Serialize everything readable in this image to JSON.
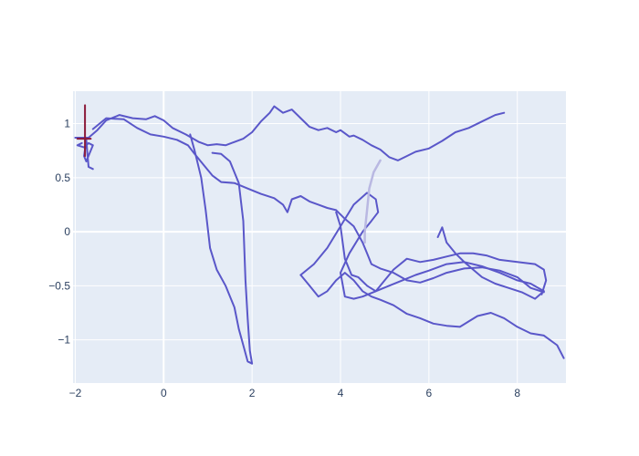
{
  "chart_data": {
    "type": "line",
    "title": "",
    "xlabel": "",
    "ylabel": "",
    "xlim": [
      -2.05,
      9.1
    ],
    "ylim": [
      -1.4,
      1.3
    ],
    "x_ticks": [
      {
        "value": -2,
        "label": "−2"
      },
      {
        "value": 0,
        "label": "0"
      },
      {
        "value": 2,
        "label": "2"
      },
      {
        "value": 4,
        "label": "4"
      },
      {
        "value": 6,
        "label": "6"
      },
      {
        "value": 8,
        "label": "8"
      }
    ],
    "y_ticks": [
      {
        "value": 1,
        "label": "1"
      },
      {
        "value": 0.5,
        "label": "0.5"
      },
      {
        "value": 0,
        "label": "0"
      },
      {
        "value": -0.5,
        "label": "−0.5"
      },
      {
        "value": -1,
        "label": "−1"
      }
    ],
    "grid": true,
    "legend": "none",
    "colors": {
      "plot_bg": "#e5ecf6",
      "grid": "#ffffff",
      "line": "#5a57c9",
      "line_light": "#b9b8e2",
      "accent_dark": "#8b1a3a"
    },
    "series": [
      {
        "color_key": "line",
        "points": [
          [
            -2.0,
            0.87
          ],
          [
            -1.7,
            0.87
          ],
          [
            -1.5,
            0.94
          ],
          [
            -1.3,
            1.03
          ],
          [
            -1.0,
            1.08
          ],
          [
            -0.7,
            1.05
          ],
          [
            -0.4,
            1.04
          ],
          [
            -0.2,
            1.07
          ],
          [
            0.0,
            1.03
          ],
          [
            0.2,
            0.96
          ],
          [
            0.5,
            0.9
          ],
          [
            0.8,
            0.83
          ],
          [
            1.0,
            0.8
          ],
          [
            1.2,
            0.81
          ],
          [
            1.4,
            0.8
          ],
          [
            1.6,
            0.83
          ],
          [
            1.8,
            0.86
          ],
          [
            2.0,
            0.92
          ],
          [
            2.2,
            1.02
          ],
          [
            2.4,
            1.1
          ],
          [
            2.5,
            1.16
          ],
          [
            2.7,
            1.1
          ],
          [
            2.9,
            1.13
          ],
          [
            3.1,
            1.05
          ],
          [
            3.3,
            0.97
          ],
          [
            3.5,
            0.94
          ],
          [
            3.7,
            0.96
          ],
          [
            3.9,
            0.92
          ],
          [
            4.0,
            0.94
          ],
          [
            4.2,
            0.88
          ],
          [
            4.3,
            0.89
          ],
          [
            4.5,
            0.85
          ],
          [
            4.7,
            0.8
          ],
          [
            4.9,
            0.76
          ],
          [
            5.1,
            0.69
          ],
          [
            5.3,
            0.66
          ],
          [
            5.5,
            0.7
          ],
          [
            5.7,
            0.74
          ],
          [
            6.0,
            0.77
          ],
          [
            6.3,
            0.84
          ],
          [
            6.6,
            0.92
          ],
          [
            6.9,
            0.96
          ],
          [
            7.2,
            1.02
          ],
          [
            7.5,
            1.08
          ],
          [
            7.7,
            1.1
          ]
        ]
      },
      {
        "color_key": "line",
        "points": [
          [
            -1.6,
            0.95
          ],
          [
            -1.3,
            1.05
          ],
          [
            -0.9,
            1.04
          ],
          [
            -0.6,
            0.96
          ],
          [
            -0.3,
            0.9
          ],
          [
            0.0,
            0.88
          ],
          [
            0.3,
            0.85
          ],
          [
            0.55,
            0.8
          ],
          [
            0.7,
            0.72
          ],
          [
            0.9,
            0.62
          ],
          [
            1.1,
            0.52
          ],
          [
            1.3,
            0.46
          ],
          [
            1.6,
            0.45
          ],
          [
            1.9,
            0.4
          ],
          [
            2.2,
            0.35
          ],
          [
            2.5,
            0.31
          ],
          [
            2.7,
            0.25
          ],
          [
            2.8,
            0.18
          ],
          [
            2.9,
            0.3
          ],
          [
            3.1,
            0.33
          ],
          [
            3.3,
            0.28
          ],
          [
            3.5,
            0.25
          ],
          [
            3.7,
            0.22
          ],
          [
            3.9,
            0.2
          ],
          [
            4.1,
            0.12
          ],
          [
            4.3,
            0.05
          ],
          [
            4.5,
            -0.1
          ],
          [
            4.6,
            -0.2
          ],
          [
            4.7,
            -0.3
          ],
          [
            4.9,
            -0.34
          ],
          [
            5.2,
            -0.38
          ],
          [
            5.5,
            -0.45
          ],
          [
            5.8,
            -0.47
          ],
          [
            6.1,
            -0.43
          ],
          [
            6.4,
            -0.38
          ],
          [
            6.8,
            -0.34
          ],
          [
            7.2,
            -0.33
          ],
          [
            7.6,
            -0.36
          ],
          [
            8.0,
            -0.42
          ],
          [
            8.3,
            -0.52
          ],
          [
            8.6,
            -0.56
          ]
        ]
      },
      {
        "color_key": "line",
        "points": [
          [
            0.6,
            0.9
          ],
          [
            0.7,
            0.75
          ],
          [
            0.85,
            0.5
          ],
          [
            0.95,
            0.2
          ],
          [
            1.05,
            -0.15
          ],
          [
            1.2,
            -0.35
          ],
          [
            1.4,
            -0.5
          ],
          [
            1.6,
            -0.7
          ],
          [
            1.7,
            -0.9
          ],
          [
            1.8,
            -1.05
          ],
          [
            1.9,
            -1.2
          ],
          [
            2.0,
            -1.22
          ],
          [
            1.95,
            -1.1
          ],
          [
            1.9,
            -0.8
          ],
          [
            1.85,
            -0.45
          ],
          [
            1.8,
            0.1
          ],
          [
            1.7,
            0.45
          ],
          [
            1.5,
            0.65
          ],
          [
            1.3,
            0.72
          ],
          [
            1.1,
            0.73
          ]
        ]
      },
      {
        "color_key": "line",
        "points": [
          [
            3.1,
            -0.4
          ],
          [
            3.3,
            -0.5
          ],
          [
            3.5,
            -0.6
          ],
          [
            3.7,
            -0.55
          ],
          [
            3.9,
            -0.45
          ],
          [
            4.1,
            -0.38
          ],
          [
            4.3,
            -0.45
          ],
          [
            4.5,
            -0.55
          ],
          [
            4.7,
            -0.6
          ],
          [
            4.9,
            -0.63
          ],
          [
            5.2,
            -0.68
          ],
          [
            5.5,
            -0.76
          ],
          [
            5.8,
            -0.8
          ],
          [
            6.1,
            -0.85
          ],
          [
            6.4,
            -0.87
          ],
          [
            6.7,
            -0.88
          ],
          [
            6.9,
            -0.83
          ],
          [
            7.1,
            -0.78
          ],
          [
            7.4,
            -0.75
          ],
          [
            7.7,
            -0.8
          ],
          [
            8.0,
            -0.88
          ],
          [
            8.3,
            -0.94
          ],
          [
            8.6,
            -0.96
          ],
          [
            8.9,
            -1.05
          ],
          [
            9.05,
            -1.17
          ]
        ]
      },
      {
        "color_key": "line",
        "points": [
          [
            3.1,
            -0.4
          ],
          [
            3.4,
            -0.3
          ],
          [
            3.7,
            -0.15
          ],
          [
            4.0,
            0.05
          ],
          [
            4.3,
            0.25
          ],
          [
            4.6,
            0.36
          ],
          [
            4.8,
            0.3
          ],
          [
            4.85,
            0.18
          ],
          [
            4.7,
            0.1
          ],
          [
            4.5,
            0.0
          ],
          [
            4.2,
            -0.2
          ],
          [
            4.0,
            -0.38
          ],
          [
            4.1,
            -0.6
          ],
          [
            4.3,
            -0.62
          ],
          [
            4.5,
            -0.6
          ],
          [
            4.8,
            -0.55
          ],
          [
            5.1,
            -0.5
          ],
          [
            5.4,
            -0.45
          ],
          [
            5.7,
            -0.4
          ],
          [
            6.0,
            -0.36
          ],
          [
            6.4,
            -0.3
          ],
          [
            6.8,
            -0.28
          ],
          [
            7.2,
            -0.32
          ],
          [
            7.6,
            -0.38
          ],
          [
            8.0,
            -0.45
          ],
          [
            8.3,
            -0.48
          ],
          [
            8.6,
            -0.55
          ]
        ]
      },
      {
        "color_key": "line",
        "points": [
          [
            3.9,
            0.18
          ],
          [
            4.0,
            0.05
          ],
          [
            4.1,
            -0.25
          ],
          [
            4.25,
            -0.4
          ],
          [
            4.4,
            -0.42
          ],
          [
            4.6,
            -0.5
          ],
          [
            4.8,
            -0.55
          ],
          [
            5.0,
            -0.45
          ],
          [
            5.2,
            -0.35
          ],
          [
            5.5,
            -0.25
          ],
          [
            5.8,
            -0.28
          ],
          [
            6.1,
            -0.26
          ],
          [
            6.4,
            -0.23
          ],
          [
            6.7,
            -0.2
          ],
          [
            7.0,
            -0.2
          ],
          [
            7.3,
            -0.22
          ],
          [
            7.6,
            -0.26
          ],
          [
            8.0,
            -0.28
          ],
          [
            8.4,
            -0.3
          ],
          [
            8.6,
            -0.35
          ],
          [
            8.65,
            -0.45
          ],
          [
            8.55,
            -0.58
          ]
        ]
      },
      {
        "color_key": "line",
        "points": [
          [
            6.2,
            -0.05
          ],
          [
            6.3,
            0.04
          ],
          [
            6.4,
            -0.1
          ],
          [
            6.6,
            -0.2
          ],
          [
            6.8,
            -0.28
          ],
          [
            7.0,
            -0.35
          ],
          [
            7.2,
            -0.42
          ],
          [
            7.5,
            -0.48
          ],
          [
            7.8,
            -0.52
          ],
          [
            8.1,
            -0.56
          ],
          [
            8.4,
            -0.62
          ],
          [
            8.6,
            -0.55
          ]
        ]
      },
      {
        "color_key": "line_light",
        "points": [
          [
            4.9,
            0.66
          ],
          [
            4.75,
            0.55
          ],
          [
            4.65,
            0.4
          ],
          [
            4.6,
            0.2
          ],
          [
            4.55,
            0.0
          ],
          [
            4.55,
            -0.1
          ]
        ]
      },
      {
        "color_key": "line",
        "points": [
          [
            -1.85,
            0.82
          ],
          [
            -1.95,
            0.8
          ],
          [
            -1.8,
            0.78
          ],
          [
            -1.7,
            0.82
          ],
          [
            -1.6,
            0.8
          ],
          [
            -1.75,
            0.65
          ],
          [
            -1.8,
            0.7
          ],
          [
            -1.75,
            0.85
          ],
          [
            -1.7,
            0.6
          ],
          [
            -1.6,
            0.58
          ]
        ]
      }
    ],
    "accent_marks": [
      {
        "color_key": "accent_dark",
        "points": [
          [
            -1.78,
            1.17
          ],
          [
            -1.78,
            0.7
          ]
        ]
      },
      {
        "color_key": "accent_dark",
        "points": [
          [
            -1.95,
            0.86
          ],
          [
            -1.65,
            0.86
          ]
        ]
      }
    ]
  }
}
